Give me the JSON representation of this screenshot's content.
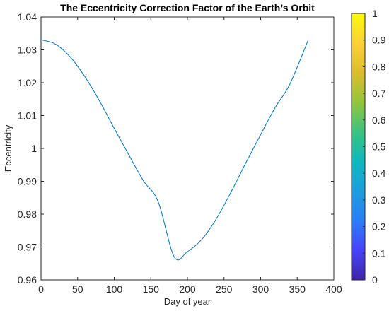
{
  "chart_data": {
    "type": "line",
    "title": "The Eccentricity Correction Factor of the Earth’s Orbit",
    "xlabel": "Day of year",
    "ylabel": "Eccentricity",
    "xlim": [
      0,
      400
    ],
    "ylim": [
      0.96,
      1.04
    ],
    "x_ticks": [
      "0",
      "50",
      "100",
      "150",
      "200",
      "250",
      "300",
      "350",
      "400"
    ],
    "y_ticks": [
      "0.96",
      "0.97",
      "0.98",
      "0.99",
      "1",
      "1.01",
      "1.02",
      "1.03",
      "1.04"
    ],
    "grid": false,
    "series": [
      {
        "color": "#0072BD",
        "x": [
          1,
          20,
          40,
          60,
          80,
          100,
          120,
          140,
          160,
          182,
          200,
          220,
          240,
          260,
          280,
          300,
          320,
          340,
          365
        ],
        "y": [
          1.033,
          1.0317,
          1.0278,
          1.0218,
          1.0144,
          1.0061,
          0.998,
          0.9901,
          0.9838,
          0.967,
          0.9686,
          0.9724,
          0.9788,
          0.9869,
          0.9957,
          1.0042,
          1.0125,
          1.0196,
          1.033
        ]
      }
    ],
    "colorbar": {
      "ticks": [
        "0",
        "0.1",
        "0.2",
        "0.3",
        "0.4",
        "0.5",
        "0.6",
        "0.7",
        "0.8",
        "0.9",
        "1"
      ],
      "range": [
        0,
        1
      ],
      "colormap": [
        "#3e26a8",
        "#4743f8",
        "#2c7ef7",
        "#1d9ddd",
        "#0db9bd",
        "#3bc27f",
        "#93c43c",
        "#dcbd2c",
        "#fdd137",
        "#f9fb0e"
      ]
    },
    "colors": {
      "axis": "#262626",
      "background": "#ffffff"
    }
  }
}
